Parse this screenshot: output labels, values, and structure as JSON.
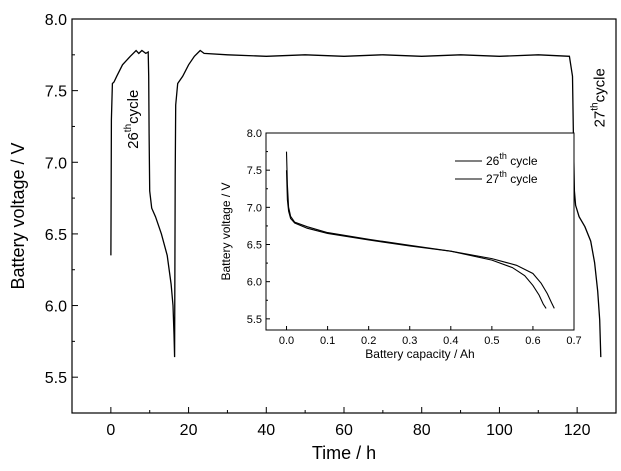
{
  "chart_data": [
    {
      "type": "line",
      "xlabel": "Time / h",
      "ylabel": "Battery voltage / V",
      "xlim": [
        -10,
        130
      ],
      "ylim": [
        5.25,
        8.0
      ],
      "xticks": [
        "0",
        "20",
        "40",
        "60",
        "80",
        "100",
        "120"
      ],
      "yticks": [
        "5.5",
        "6.0",
        "6.5",
        "7.0",
        "7.5",
        "8.0"
      ],
      "annotations": [
        {
          "base": "26",
          "sup": "th",
          "rest": "cycle",
          "at_x": 7,
          "at_y": 7.3
        },
        {
          "base": "27",
          "sup": "th",
          "rest": "cycle",
          "at_x": 127,
          "at_y": 7.45
        }
      ],
      "series": [
        {
          "name": "",
          "color": "#000000",
          "x": [
            0,
            0.15,
            0.4,
            0.8,
            1.5,
            3,
            5,
            6.5,
            7.2,
            8,
            9,
            9.6,
            9.75,
            9.85,
            10,
            10.5,
            11.5,
            13,
            14.5,
            15.5,
            16,
            16.25,
            16.4,
            16.55,
            16.7,
            17.2,
            18.5,
            20,
            21.5,
            23,
            24,
            30,
            40,
            50,
            60,
            70,
            80,
            90,
            100,
            110,
            118,
            118.8,
            119.1,
            119.3,
            119.6,
            120.5,
            122,
            123.5,
            124.5,
            125.3,
            125.8,
            126.1
          ],
          "y": [
            6.35,
            7.3,
            7.55,
            7.56,
            7.6,
            7.68,
            7.74,
            7.78,
            7.76,
            7.78,
            7.76,
            7.77,
            7.6,
            7.2,
            6.8,
            6.68,
            6.62,
            6.5,
            6.35,
            6.15,
            6.0,
            5.8,
            5.64,
            6.9,
            7.4,
            7.55,
            7.6,
            7.68,
            7.74,
            7.78,
            7.76,
            7.75,
            7.74,
            7.75,
            7.74,
            7.75,
            7.74,
            7.75,
            7.74,
            7.75,
            7.74,
            7.6,
            7.1,
            6.8,
            6.7,
            6.62,
            6.55,
            6.45,
            6.3,
            6.1,
            5.9,
            5.64
          ]
        }
      ]
    },
    {
      "type": "line",
      "xlabel": "Battery capacity / Ah",
      "ylabel": "Battery voltage / V",
      "xlim": [
        -0.05,
        0.7
      ],
      "ylim": [
        5.35,
        8.0
      ],
      "xticks": [
        "0.0",
        "0.1",
        "0.2",
        "0.3",
        "0.4",
        "0.5",
        "0.6",
        "0.7"
      ],
      "yticks": [
        "5.5",
        "6.0",
        "6.5",
        "7.0",
        "7.5",
        "8.0"
      ],
      "legend_position": "top-right",
      "series": [
        {
          "label_base": "26",
          "label_sup": "th",
          "label_rest": " cycle",
          "color": "#000000",
          "x": [
            0.0,
            0.002,
            0.005,
            0.01,
            0.02,
            0.05,
            0.1,
            0.2,
            0.3,
            0.4,
            0.5,
            0.55,
            0.58,
            0.6,
            0.615,
            0.625,
            0.632
          ],
          "y": [
            7.75,
            7.3,
            7.0,
            6.88,
            6.8,
            6.74,
            6.66,
            6.57,
            6.49,
            6.41,
            6.29,
            6.19,
            6.08,
            5.95,
            5.82,
            5.7,
            5.64
          ]
        },
        {
          "label_base": "27",
          "label_sup": "th",
          "label_rest": " cycle",
          "color": "#000000",
          "x": [
            0.0,
            0.002,
            0.005,
            0.01,
            0.02,
            0.05,
            0.1,
            0.2,
            0.3,
            0.4,
            0.5,
            0.56,
            0.6,
            0.62,
            0.635,
            0.645,
            0.652
          ],
          "y": [
            7.5,
            7.1,
            6.95,
            6.85,
            6.79,
            6.72,
            6.65,
            6.56,
            6.48,
            6.41,
            6.31,
            6.22,
            6.11,
            5.98,
            5.84,
            5.72,
            5.64
          ]
        }
      ]
    }
  ]
}
